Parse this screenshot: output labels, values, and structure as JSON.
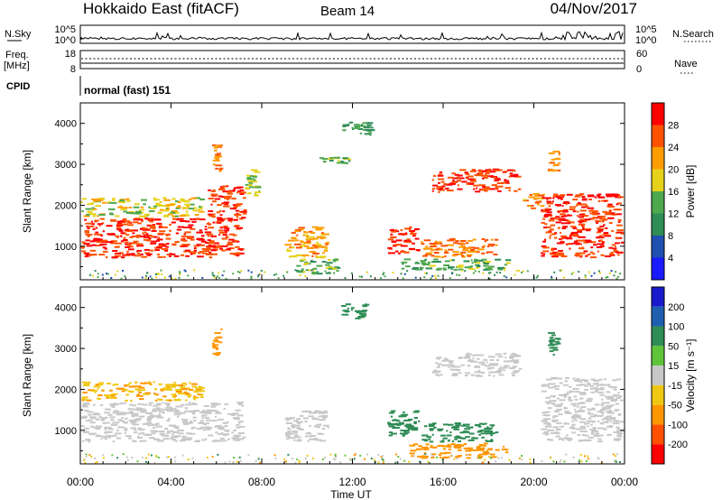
{
  "header": {
    "title": "Hokkaido East (fitACF)",
    "beam": "Beam 14",
    "date": "04/Nov/2017"
  },
  "noise_panel": {
    "left_label": "N.Sky",
    "right_label": "N.Search",
    "left_ticks": [
      "10^5",
      "10^0"
    ],
    "right_ticks": [
      "10^5",
      "10^0"
    ]
  },
  "freq_panel": {
    "left_label_line1": "Freq.",
    "left_label_line2": "[MHz]",
    "left_ticks": [
      "18",
      "8"
    ],
    "right_label": "Nave",
    "right_ticks": [
      "60",
      "0"
    ]
  },
  "cpid_panel": {
    "label": "CPID",
    "mode_text": "normal (fast) 151"
  },
  "x_axis": {
    "label": "Time UT",
    "ticks": [
      "00:00",
      "04:00",
      "08:00",
      "12:00",
      "16:00",
      "20:00",
      "00:00"
    ]
  },
  "power_panel": {
    "ylabel": "Slant Range [km]",
    "yticks": [
      "1000",
      "2000",
      "3000",
      "4000"
    ],
    "colorbar_label": "Power [dB]",
    "colorbar_ticks": [
      "28",
      "24",
      "20",
      "16",
      "12",
      "8",
      "4"
    ],
    "colors": [
      "#1a1aff",
      "#1f4fb0",
      "#2e8c55",
      "#4ea84e",
      "#e6d21a",
      "#ff9d00",
      "#ff5200",
      "#ff0000"
    ]
  },
  "velocity_panel": {
    "ylabel": "Slant Range [km]",
    "yticks": [
      "1000",
      "2000",
      "3000",
      "4000"
    ],
    "colorbar_label": "Velocity [m s⁻¹]",
    "colorbar_ticks": [
      "200",
      "100",
      "50",
      "15",
      "-15",
      "-50",
      "-100",
      "-200"
    ],
    "colors": [
      "#1a1acc",
      "#1f5fb0",
      "#2e8c55",
      "#5fc43a",
      "#c8c8c8",
      "#f0c814",
      "#ff9600",
      "#ff5000",
      "#ff0000"
    ]
  },
  "chart_data": [
    {
      "type": "heatmap",
      "name": "power",
      "x_range_hours": [
        0,
        24
      ],
      "y_range_km": [
        180,
        4500
      ],
      "colorbar_range_db": [
        0,
        32
      ],
      "regions": [
        {
          "t": [
            0.0,
            7.3
          ],
          "r": [
            700,
            1700
          ],
          "value": 28
        },
        {
          "t": [
            5.6,
            7.4
          ],
          "r": [
            1600,
            2500
          ],
          "value": 28
        },
        {
          "t": [
            5.8,
            6.3
          ],
          "r": [
            2800,
            3500
          ],
          "value": 24
        },
        {
          "t": [
            0.0,
            5.5
          ],
          "r": [
            1700,
            2200
          ],
          "value": 18
        },
        {
          "t": [
            7.2,
            8.0
          ],
          "r": [
            2200,
            2900
          ],
          "value": 16
        },
        {
          "t": [
            9.0,
            11.0
          ],
          "r": [
            700,
            1500
          ],
          "value": 22
        },
        {
          "t": [
            9.5,
            11.5
          ],
          "r": [
            300,
            700
          ],
          "value": 14
        },
        {
          "t": [
            10.5,
            12.0
          ],
          "r": [
            3000,
            3200
          ],
          "value": 14
        },
        {
          "t": [
            11.5,
            13.0
          ],
          "r": [
            3700,
            4100
          ],
          "value": 12
        },
        {
          "t": [
            13.5,
            15.0
          ],
          "r": [
            800,
            1500
          ],
          "value": 28
        },
        {
          "t": [
            15.0,
            18.5
          ],
          "r": [
            700,
            1200
          ],
          "value": 24
        },
        {
          "t": [
            14.0,
            19.0
          ],
          "r": [
            400,
            700
          ],
          "value": 14
        },
        {
          "t": [
            15.5,
            19.5
          ],
          "r": [
            2300,
            2900
          ],
          "value": 28
        },
        {
          "t": [
            19.5,
            20.5
          ],
          "r": [
            1900,
            2300
          ],
          "value": 22
        },
        {
          "t": [
            20.3,
            24.0
          ],
          "r": [
            700,
            2300
          ],
          "value": 28
        },
        {
          "t": [
            20.6,
            21.2
          ],
          "r": [
            2800,
            3400
          ],
          "value": 24
        }
      ]
    },
    {
      "type": "heatmap",
      "name": "velocity",
      "x_range_hours": [
        0,
        24
      ],
      "y_range_km": [
        180,
        4500
      ],
      "colorbar_range_ms": [
        -250,
        250
      ],
      "regions": [
        {
          "t": [
            0.0,
            7.3
          ],
          "r": [
            700,
            1700
          ],
          "value": 0
        },
        {
          "t": [
            0.0,
            5.5
          ],
          "r": [
            1700,
            2200
          ],
          "value": -30
        },
        {
          "t": [
            5.8,
            6.3
          ],
          "r": [
            2800,
            3500
          ],
          "value": -40
        },
        {
          "t": [
            9.0,
            11.0
          ],
          "r": [
            700,
            1500
          ],
          "value": 0
        },
        {
          "t": [
            11.5,
            12.8
          ],
          "r": [
            3700,
            4100
          ],
          "value": 60
        },
        {
          "t": [
            13.5,
            15.0
          ],
          "r": [
            800,
            1500
          ],
          "value": 40
        },
        {
          "t": [
            15.0,
            18.5
          ],
          "r": [
            700,
            1200
          ],
          "value": 50
        },
        {
          "t": [
            14.5,
            19.0
          ],
          "r": [
            300,
            700
          ],
          "value": -40
        },
        {
          "t": [
            15.5,
            19.5
          ],
          "r": [
            2300,
            2900
          ],
          "value": 0
        },
        {
          "t": [
            20.3,
            24.0
          ],
          "r": [
            700,
            2300
          ],
          "value": 0
        },
        {
          "t": [
            20.6,
            21.2
          ],
          "r": [
            2800,
            3400
          ],
          "value": 40
        }
      ]
    }
  ]
}
